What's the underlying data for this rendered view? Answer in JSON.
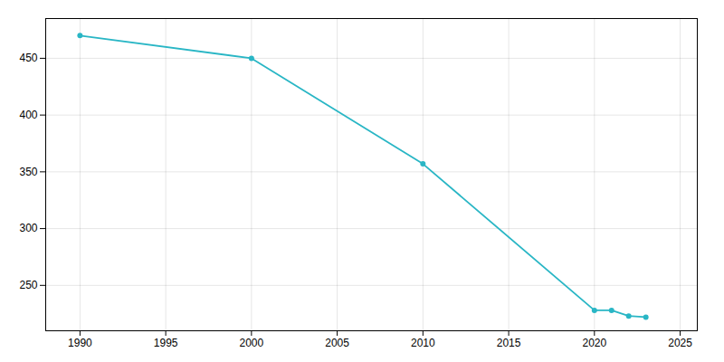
{
  "chart_data": {
    "type": "line",
    "x": [
      1990,
      2000,
      2010,
      2020,
      2021,
      2022,
      2023
    ],
    "values": [
      470,
      450,
      357,
      228,
      228,
      223,
      222
    ],
    "color": "#29b6c5",
    "marker": "circle",
    "xlim": [
      1988,
      2026
    ],
    "ylim": [
      210,
      485
    ],
    "xticks": [
      1990,
      1995,
      2000,
      2005,
      2010,
      2015,
      2020,
      2025
    ],
    "yticks": [
      250,
      300,
      350,
      400,
      450
    ],
    "grid": true
  }
}
